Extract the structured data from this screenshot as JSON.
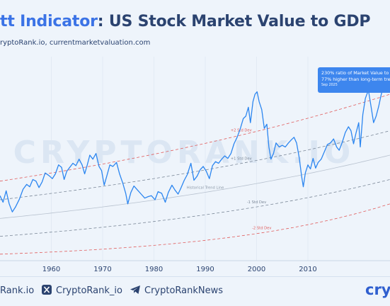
{
  "header": {
    "title_accent": "tt Indicator",
    "title_rest": ": US Stock Market Value to GDP",
    "source": "ryptoRank.io, currentmarketvaluation.com"
  },
  "watermark": "CRYPTORANK.IO",
  "callout": {
    "line1": "230% ratio of Market Value to G",
    "line2": "77% higher than long-term tren",
    "line3": "Sep 2025",
    "color": "#3d86ee"
  },
  "footer": {
    "website": "Rank.io",
    "twitter": "CryptoRank_io",
    "telegram": "CryptoRankNews",
    "brand": "cryp"
  },
  "colors": {
    "title": "#2b4370",
    "accent": "#3b73e6",
    "series": "#2c86f0",
    "plus2": "#e05b5b",
    "minus2": "#e05b5b",
    "band": "#7a8797"
  },
  "chart_data": {
    "type": "line",
    "xlim": [
      1950,
      2026
    ],
    "ylim": [
      0,
      260
    ],
    "x_ticks": [
      1960,
      1970,
      1980,
      1990,
      2000,
      2010
    ],
    "series": [
      {
        "points": [
          [
            1950,
            80
          ],
          [
            1950.6,
            72
          ],
          [
            1951.2,
            86
          ],
          [
            1951.8,
            70
          ],
          [
            1952.4,
            60
          ],
          [
            1953,
            66
          ],
          [
            1953.8,
            76
          ],
          [
            1954.5,
            88
          ],
          [
            1955.2,
            94
          ],
          [
            1955.8,
            91
          ],
          [
            1956.4,
            100
          ],
          [
            1957,
            98
          ],
          [
            1957.6,
            90
          ],
          [
            1958.2,
            97
          ],
          [
            1958.8,
            108
          ],
          [
            1959.5,
            105
          ],
          [
            1960.2,
            101
          ],
          [
            1960.8,
            107
          ],
          [
            1961.4,
            118
          ],
          [
            1962,
            115
          ],
          [
            1962.5,
            100
          ],
          [
            1963,
            110
          ],
          [
            1963.6,
            115
          ],
          [
            1964.2,
            120
          ],
          [
            1964.8,
            117
          ],
          [
            1965.4,
            125
          ],
          [
            1966,
            118
          ],
          [
            1966.5,
            107
          ],
          [
            1967,
            118
          ],
          [
            1967.5,
            130
          ],
          [
            1968.1,
            125
          ],
          [
            1968.7,
            132
          ],
          [
            1969.3,
            116
          ],
          [
            1969.8,
            111
          ],
          [
            1970.3,
            93
          ],
          [
            1970.8,
            104
          ],
          [
            1971.4,
            118
          ],
          [
            1972,
            116
          ],
          [
            1972.7,
            121
          ],
          [
            1973.3,
            107
          ],
          [
            1973.9,
            96
          ],
          [
            1974.5,
            83
          ],
          [
            1974.9,
            70
          ],
          [
            1975.5,
            84
          ],
          [
            1976.1,
            92
          ],
          [
            1976.8,
            87
          ],
          [
            1977.5,
            82
          ],
          [
            1978.2,
            77
          ],
          [
            1978.9,
            79
          ],
          [
            1979.5,
            80
          ],
          [
            1980.2,
            75
          ],
          [
            1980.8,
            85
          ],
          [
            1981.5,
            83
          ],
          [
            1982.2,
            72
          ],
          [
            1982.8,
            84
          ],
          [
            1983.5,
            93
          ],
          [
            1984.1,
            87
          ],
          [
            1984.7,
            82
          ],
          [
            1985.3,
            90
          ],
          [
            1985.9,
            99
          ],
          [
            1986.5,
            106
          ],
          [
            1987.2,
            120
          ],
          [
            1987.8,
            99
          ],
          [
            1988.4,
            104
          ],
          [
            1989,
            112
          ],
          [
            1989.6,
            116
          ],
          [
            1990.2,
            110
          ],
          [
            1990.8,
            101
          ],
          [
            1991.4,
            117
          ],
          [
            1992,
            122
          ],
          [
            1992.6,
            120
          ],
          [
            1993.2,
            125
          ],
          [
            1993.8,
            129
          ],
          [
            1994.4,
            126
          ],
          [
            1995,
            132
          ],
          [
            1995.6,
            144
          ],
          [
            1996.2,
            152
          ],
          [
            1996.8,
            162
          ],
          [
            1997.4,
            175
          ],
          [
            1997.9,
            178
          ],
          [
            1998.4,
            189
          ],
          [
            1998.8,
            170
          ],
          [
            1999.3,
            196
          ],
          [
            1999.7,
            205
          ],
          [
            2000.1,
            208
          ],
          [
            2000.5,
            196
          ],
          [
            2001,
            186
          ],
          [
            2001.5,
            163
          ],
          [
            2002,
            168
          ],
          [
            2002.4,
            140
          ],
          [
            2002.8,
            125
          ],
          [
            2003.3,
            132
          ],
          [
            2003.8,
            145
          ],
          [
            2004.4,
            140
          ],
          [
            2005,
            142
          ],
          [
            2005.6,
            140
          ],
          [
            2006.2,
            145
          ],
          [
            2006.8,
            149
          ],
          [
            2007.3,
            152
          ],
          [
            2007.8,
            145
          ],
          [
            2008.3,
            127
          ],
          [
            2008.8,
            103
          ],
          [
            2009.1,
            91
          ],
          [
            2009.5,
            108
          ],
          [
            2010,
            118
          ],
          [
            2010.5,
            113
          ],
          [
            2011,
            126
          ],
          [
            2011.5,
            114
          ],
          [
            2012,
            121
          ],
          [
            2012.6,
            125
          ],
          [
            2013.2,
            134
          ],
          [
            2013.8,
            143
          ],
          [
            2014.4,
            145
          ],
          [
            2015,
            150
          ],
          [
            2015.6,
            140
          ],
          [
            2016.1,
            136
          ],
          [
            2016.7,
            146
          ],
          [
            2017.3,
            158
          ],
          [
            2017.9,
            165
          ],
          [
            2018.4,
            160
          ],
          [
            2018.9,
            144
          ],
          [
            2019.4,
            158
          ],
          [
            2019.9,
            170
          ],
          [
            2020.2,
            140
          ],
          [
            2020.7,
            180
          ],
          [
            2021.2,
            200
          ],
          [
            2021.8,
            210
          ],
          [
            2022.3,
            190
          ],
          [
            2022.8,
            170
          ],
          [
            2023.3,
            178
          ],
          [
            2023.8,
            190
          ],
          [
            2024.3,
            205
          ],
          [
            2024.8,
            215
          ],
          [
            2025.3,
            225
          ],
          [
            2025.7,
            230
          ],
          [
            2026,
            236
          ]
        ]
      }
    ],
    "bands": [
      {
        "label": "+2 Std Dev",
        "color": "#e05b5b",
        "dash": "4,3",
        "start": 98,
        "end": 205,
        "label_x": 1997,
        "label_offset": -5
      },
      {
        "label": "+1 Std Dev",
        "color": "#7a8797",
        "dash": "4,3",
        "start": 75,
        "end": 160,
        "label_x": 1997,
        "label_offset": -5
      },
      {
        "label": "Historical Trend Line",
        "color": "#b8c2cf",
        "dash": "",
        "start": 52,
        "end": 130,
        "label_x": 1990,
        "label_offset": -5
      },
      {
        "label": "-1 Std Dev",
        "color": "#7a8797",
        "dash": "4,3",
        "start": 30,
        "end": 100,
        "label_x": 2000,
        "label_offset": -5
      },
      {
        "label": "-2 Std Dev",
        "color": "#e05b5b",
        "dash": "4,3",
        "start": 8,
        "end": 70,
        "label_x": 2001,
        "label_offset": -5
      }
    ]
  }
}
